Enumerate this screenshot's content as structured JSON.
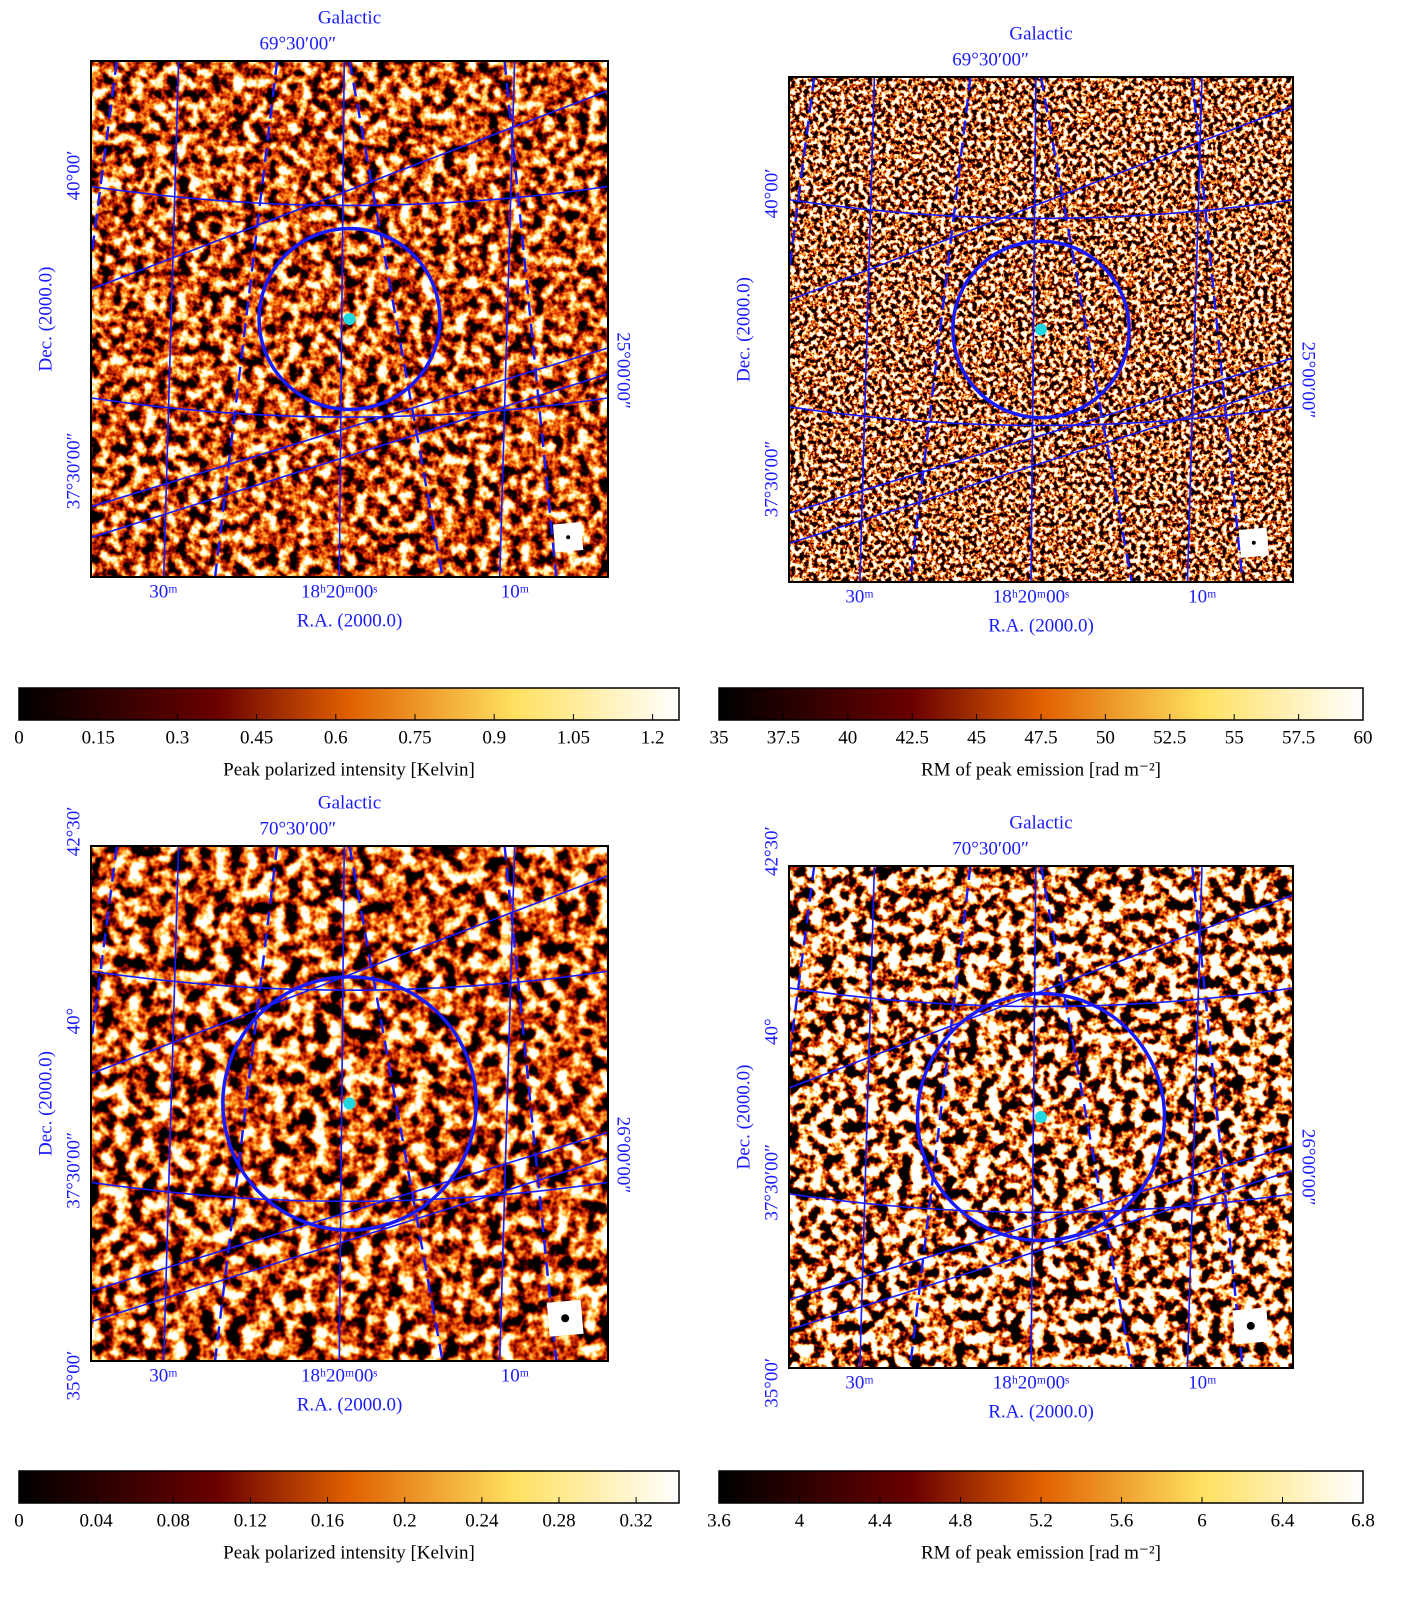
{
  "panels": [
    {
      "frame_label": "Galactic",
      "longitude_label": "69°30′00″",
      "latitude_label": "25°00′00″",
      "dec_ticks": [
        "40°00′",
        "37°30′00″"
      ],
      "ra_ticks": [
        "30ᵐ",
        "18ʰ20ᵐ00ˢ",
        "10ᵐ"
      ],
      "xlabel": "R.A. (2000.0)",
      "ylabel": "Dec. (2000.0)",
      "colorbar": {
        "ticks": [
          0,
          0.15,
          0.3,
          0.45,
          0.6,
          0.75,
          0.9,
          1.05,
          1.2
        ],
        "label": "Peak polarized intensity [Kelvin]"
      }
    },
    {
      "frame_label": "Galactic",
      "longitude_label": "69°30′00″",
      "latitude_label": "25°00′00″",
      "dec_ticks": [
        "40°00′",
        "37°30′00″"
      ],
      "ra_ticks": [
        "30ᵐ",
        "18ʰ20ᵐ00ˢ",
        "10ᵐ"
      ],
      "xlabel": "R.A. (2000.0)",
      "ylabel": "Dec. (2000.0)",
      "colorbar": {
        "ticks": [
          35,
          37.5,
          40,
          42.5,
          45,
          47.5,
          50,
          52.5,
          55,
          57.5,
          60
        ],
        "label": "RM of peak emission [rad m⁻²]"
      }
    },
    {
      "frame_label": "Galactic",
      "longitude_label": "70°30′00″",
      "latitude_label": "26°00′00″",
      "dec_ticks": [
        "42°30′",
        "40°",
        "37°30′00″",
        "35°00′"
      ],
      "ra_ticks": [
        "30ᵐ",
        "18ʰ20ᵐ00ˢ",
        "10ᵐ"
      ],
      "xlabel": "R.A. (2000.0)",
      "ylabel": "Dec. (2000.0)",
      "colorbar": {
        "ticks": [
          0,
          0.04,
          0.08,
          0.12,
          0.16,
          0.2,
          0.24,
          0.28,
          0.32
        ],
        "label": "Peak polarized intensity [Kelvin]"
      }
    },
    {
      "frame_label": "Galactic",
      "longitude_label": "70°30′00″",
      "latitude_label": "26°00′00″",
      "dec_ticks": [
        "42°30′",
        "40°",
        "37°30′00″",
        "35°00′"
      ],
      "ra_ticks": [
        "30ᵐ",
        "18ʰ20ᵐ00ˢ",
        "10ᵐ"
      ],
      "xlabel": "R.A. (2000.0)",
      "ylabel": "Dec. (2000.0)",
      "colorbar": {
        "ticks": [
          3.6,
          4,
          4.4,
          4.8,
          5.2,
          5.6,
          6,
          6.4,
          6.8
        ],
        "label": "RM of peak emission [rad m⁻²]"
      }
    }
  ]
}
